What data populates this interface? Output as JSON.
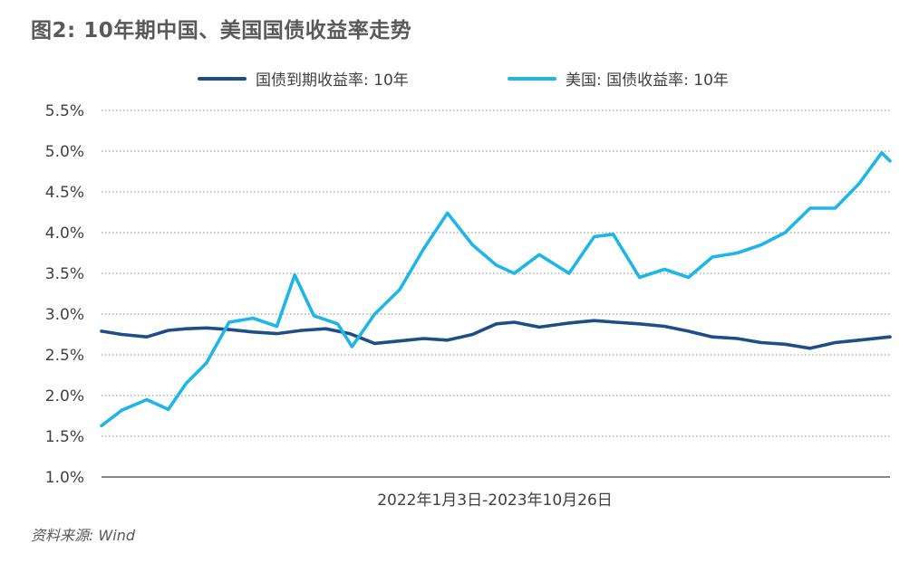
{
  "chart_data": {
    "type": "line",
    "title": "图2: 10年期中国、美国国债收益率走势",
    "xlabel": "2022年1月3日-2023年10月26日",
    "ylabel": "",
    "ylim": [
      1.0,
      5.5
    ],
    "yticks": [
      "5.5%",
      "5.0%",
      "4.5%",
      "4.0%",
      "3.5%",
      "3.0%",
      "2.5%",
      "2.0%",
      "1.5%",
      "1.0%"
    ],
    "ytick_values": [
      5.5,
      5.0,
      4.5,
      4.0,
      3.5,
      3.0,
      2.5,
      2.0,
      1.5,
      1.0
    ],
    "xlim": [
      "2022-01-03",
      "2023-10-26"
    ],
    "grid": true,
    "legend": "top",
    "series": [
      {
        "name": "国债到期收益率: 10年",
        "color": "#1f4e85",
        "x": [
          "2022-01-03",
          "2022-01-20",
          "2022-02-10",
          "2022-02-28",
          "2022-03-15",
          "2022-04-01",
          "2022-04-20",
          "2022-05-10",
          "2022-05-30",
          "2022-06-20",
          "2022-07-10",
          "2022-07-30",
          "2022-08-20",
          "2022-09-10",
          "2022-09-30",
          "2022-10-20",
          "2022-11-10",
          "2022-11-30",
          "2022-12-15",
          "2023-01-05",
          "2023-01-30",
          "2023-02-20",
          "2023-03-10",
          "2023-03-30",
          "2023-04-20",
          "2023-05-10",
          "2023-05-30",
          "2023-06-20",
          "2023-07-10",
          "2023-07-30",
          "2023-08-20",
          "2023-09-10",
          "2023-09-30",
          "2023-10-26"
        ],
        "values": [
          2.79,
          2.75,
          2.72,
          2.8,
          2.82,
          2.83,
          2.81,
          2.78,
          2.76,
          2.8,
          2.82,
          2.76,
          2.64,
          2.67,
          2.7,
          2.68,
          2.75,
          2.88,
          2.9,
          2.84,
          2.89,
          2.92,
          2.9,
          2.88,
          2.85,
          2.79,
          2.72,
          2.7,
          2.65,
          2.63,
          2.58,
          2.65,
          2.68,
          2.72
        ]
      },
      {
        "name": "美国: 国债收益率: 10年",
        "color": "#1eb6e8",
        "x": [
          "2022-01-03",
          "2022-01-20",
          "2022-02-10",
          "2022-02-28",
          "2022-03-15",
          "2022-04-01",
          "2022-04-20",
          "2022-05-10",
          "2022-05-30",
          "2022-06-14",
          "2022-06-30",
          "2022-07-20",
          "2022-08-01",
          "2022-08-20",
          "2022-09-10",
          "2022-09-30",
          "2022-10-20",
          "2022-11-10",
          "2022-11-30",
          "2022-12-15",
          "2023-01-05",
          "2023-01-30",
          "2023-02-20",
          "2023-03-08",
          "2023-03-30",
          "2023-04-20",
          "2023-05-10",
          "2023-05-30",
          "2023-06-20",
          "2023-07-10",
          "2023-07-30",
          "2023-08-20",
          "2023-09-10",
          "2023-09-30",
          "2023-10-19",
          "2023-10-26"
        ],
        "values": [
          1.63,
          1.82,
          1.95,
          1.83,
          2.15,
          2.4,
          2.9,
          2.95,
          2.85,
          3.48,
          2.98,
          2.88,
          2.6,
          3.0,
          3.3,
          3.8,
          4.24,
          3.85,
          3.6,
          3.5,
          3.73,
          3.5,
          3.95,
          3.98,
          3.45,
          3.55,
          3.45,
          3.7,
          3.75,
          3.85,
          4.0,
          4.3,
          4.3,
          4.6,
          4.98,
          4.88
        ]
      }
    ]
  },
  "source": "资料来源: Wind"
}
